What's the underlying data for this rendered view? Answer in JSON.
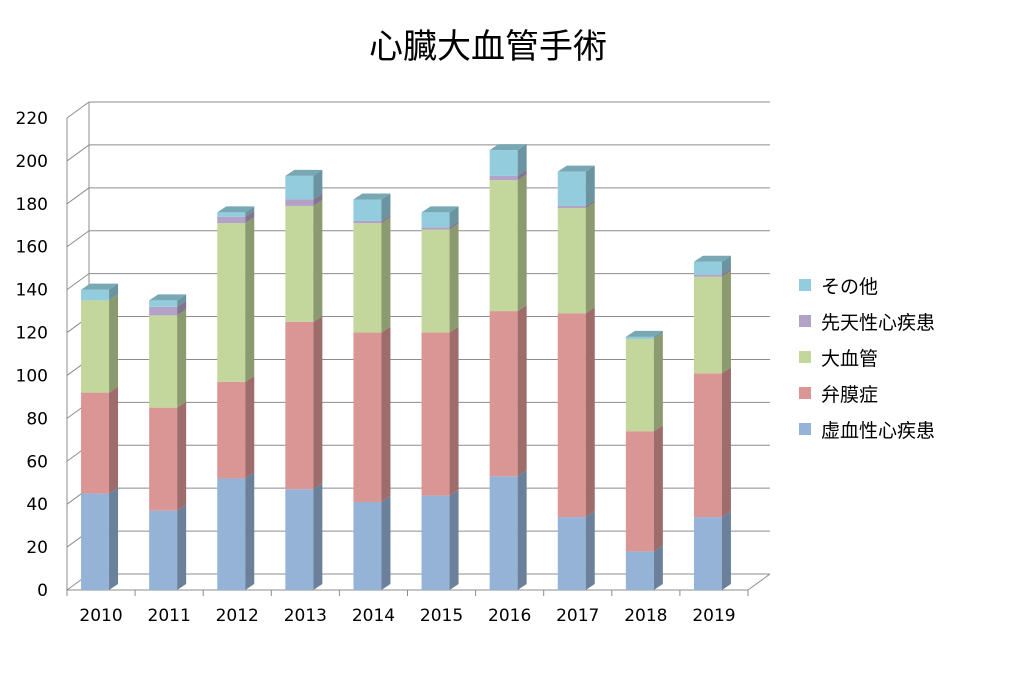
{
  "chart_data": {
    "type": "bar",
    "stacked": true,
    "three_d": true,
    "title": "心臓大血管手術",
    "xlabel": "",
    "ylabel": "",
    "ylim": [
      0,
      220
    ],
    "yticks": [
      0,
      20,
      40,
      60,
      80,
      100,
      120,
      140,
      160,
      180,
      200,
      220
    ],
    "grid": true,
    "legend_position": "right",
    "categories": [
      "2010",
      "2011",
      "2012",
      "2013",
      "2014",
      "2015",
      "2016",
      "2017",
      "2018",
      "2019"
    ],
    "series": [
      {
        "name": "虚血性心疾患",
        "color": "#95b3d7",
        "values": [
          45,
          37,
          52,
          47,
          41,
          44,
          53,
          34,
          18,
          34
        ]
      },
      {
        "name": "弁膜症",
        "color": "#da9694",
        "values": [
          47,
          48,
          45,
          78,
          79,
          76,
          77,
          95,
          56,
          67
        ]
      },
      {
        "name": "大血管",
        "color": "#c3d69b",
        "values": [
          43,
          43,
          74,
          54,
          51,
          48,
          61,
          49,
          43,
          45
        ]
      },
      {
        "name": "先天性心疾患",
        "color": "#b3a2c7",
        "values": [
          0,
          4,
          3,
          3,
          1,
          1,
          2,
          1,
          0,
          1
        ]
      },
      {
        "name": "その他",
        "color": "#93cddd",
        "values": [
          5,
          3,
          2,
          11,
          10,
          7,
          12,
          16,
          1,
          6
        ]
      }
    ]
  }
}
